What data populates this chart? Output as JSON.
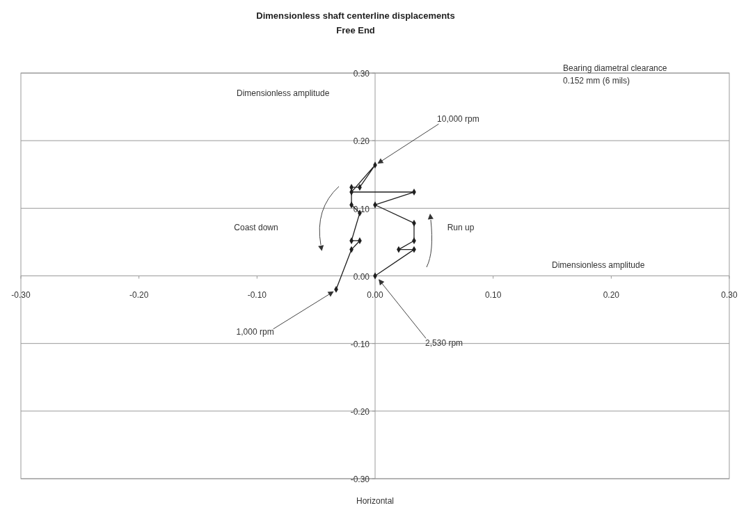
{
  "chart_data": {
    "type": "line",
    "title": "Dimensionless shaft centerline displacements",
    "subtitle": "Free End",
    "xlabel": "Horizontal",
    "ylabel": "Dimensionless amplitude",
    "x": [
      0,
      0.033,
      0.02,
      0.033,
      0.033,
      0,
      0.033,
      -0.02,
      0,
      -0.013,
      -0.02,
      -0.02,
      -0.013,
      -0.02,
      -0.013,
      -0.02,
      -0.033
    ],
    "series": [
      {
        "color": "#1f1f1f",
        "values": [
          0,
          0.039,
          0.039,
          0.052,
          0.078,
          0.105,
          0.124,
          0.124,
          0.164,
          0.131,
          0.131,
          0.105,
          0.093,
          0.052,
          0.052,
          0.039,
          -0.02
        ]
      }
    ],
    "xlim": [
      -0.3,
      0.3
    ],
    "ylim": [
      -0.3,
      0.3
    ],
    "xticks": [
      {
        "value": -0.3,
        "label": "-0.30"
      },
      {
        "value": -0.2,
        "label": "-0.20"
      },
      {
        "value": -0.1,
        "label": "-0.10"
      },
      {
        "value": 0,
        "label": "0.00"
      },
      {
        "value": 0.1,
        "label": "0.10"
      },
      {
        "value": 0.2,
        "label": "0.20"
      },
      {
        "value": 0.3,
        "label": "0.30"
      }
    ],
    "yticks": [
      {
        "value": -0.3,
        "label": "-0.30"
      },
      {
        "value": -0.2,
        "label": "-0.20"
      },
      {
        "value": -0.1,
        "label": "-0.10"
      },
      {
        "value": 0,
        "label": "0.00"
      },
      {
        "value": 0.1,
        "label": "0.10"
      },
      {
        "value": 0.2,
        "label": "0.20"
      },
      {
        "value": 0.3,
        "label": "0.30"
      }
    ],
    "grid": "y",
    "marker": "diamond",
    "line_style": "solid",
    "annotations": [
      "Bearing diametral clearance",
      "0.152 mm (6 mils)",
      "Dimensionless amplitude",
      {
        "text": "10,000 rpm",
        "x": 0.002,
        "y": 0.166
      },
      {
        "text": "2,530 rpm",
        "x": 0.003,
        "y": -0.005
      },
      {
        "text": "1,000 rpm",
        "x": -0.035,
        "y": -0.023
      },
      "Coast down",
      "Run up"
    ]
  }
}
